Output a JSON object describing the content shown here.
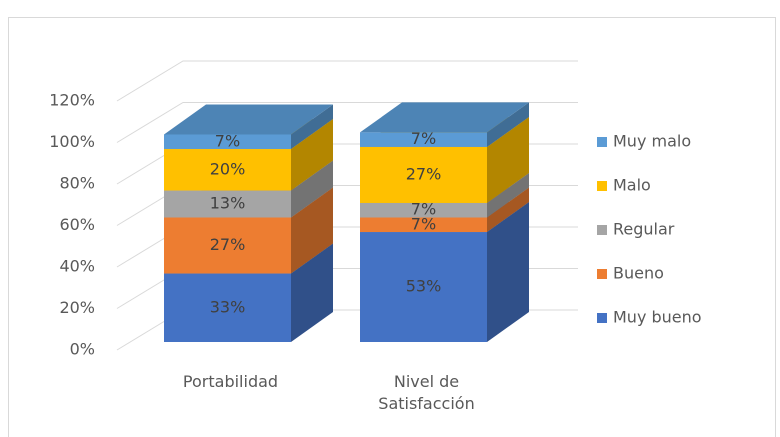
{
  "chart_data": {
    "type": "bar3d_stacked",
    "categories": [
      "Portabilidad",
      "Nivel de Satisfacción"
    ],
    "series": [
      {
        "name": "Muy bueno",
        "color": "#4472c4",
        "values": [
          33,
          53
        ],
        "value_labels": [
          "33%",
          "53%"
        ]
      },
      {
        "name": "Bueno",
        "color": "#ed7d31",
        "values": [
          27,
          7
        ],
        "value_labels": [
          "27%",
          "7%"
        ]
      },
      {
        "name": "Regular",
        "color": "#a5a5a5",
        "values": [
          13,
          7
        ],
        "value_labels": [
          "13%",
          "7%"
        ]
      },
      {
        "name": "Malo",
        "color": "#ffc000",
        "values": [
          20,
          27
        ],
        "value_labels": [
          "20%",
          "27%"
        ]
      },
      {
        "name": "Muy malo",
        "color": "#5b9bd5",
        "values": [
          7,
          7
        ],
        "value_labels": [
          "7%",
          "7%"
        ]
      }
    ],
    "ylim": [
      0,
      120
    ],
    "yticks": [
      {
        "value": 0,
        "label": "0%"
      },
      {
        "value": 20,
        "label": "20%"
      },
      {
        "value": 40,
        "label": "40%"
      },
      {
        "value": 60,
        "label": "60%"
      },
      {
        "value": 80,
        "label": "80%"
      },
      {
        "value": 100,
        "label": "100%"
      },
      {
        "value": 120,
        "label": "120%"
      }
    ],
    "grid": true,
    "legend": "right"
  }
}
